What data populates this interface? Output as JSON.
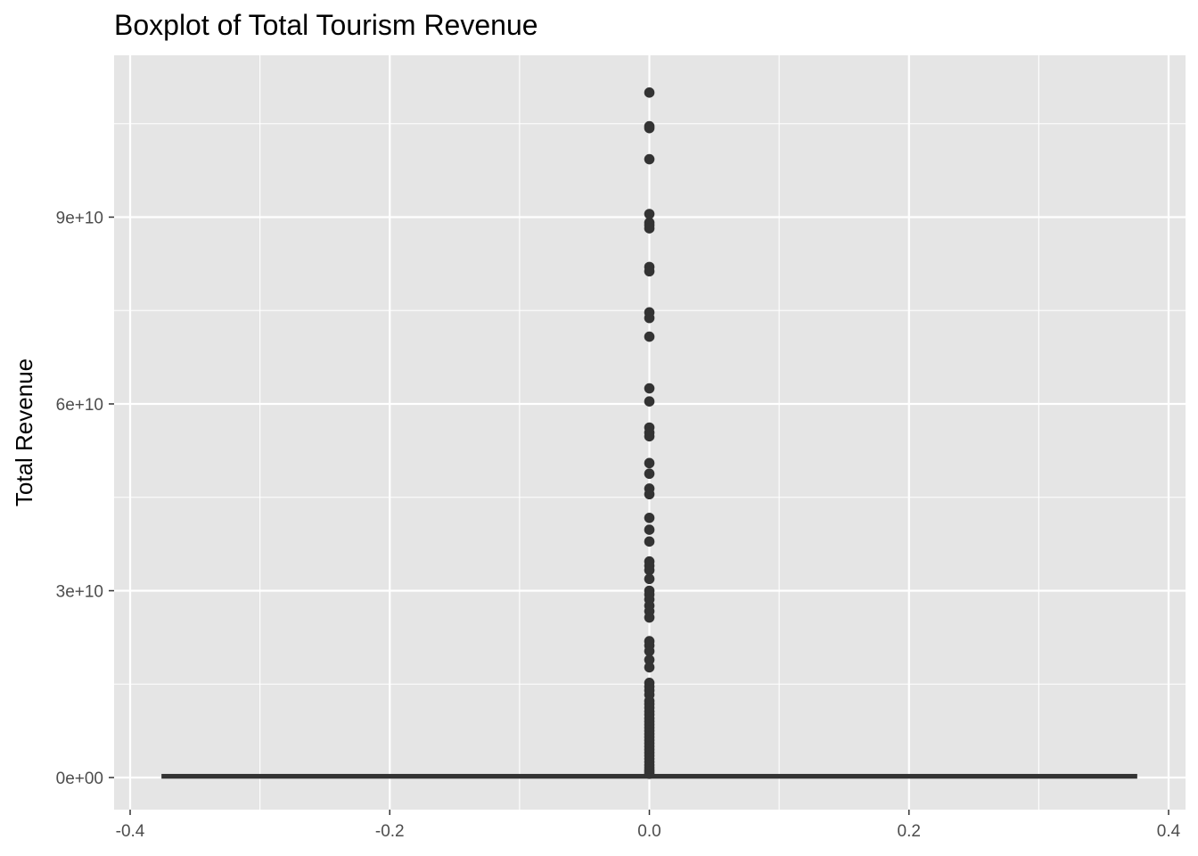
{
  "chart_data": {
    "type": "boxplot",
    "title": "Boxplot of Total Tourism Revenue",
    "xlabel": "",
    "ylabel": "Total Revenue",
    "xlim": [
      -0.4,
      0.4
    ],
    "ylim": [
      0,
      110000000000
    ],
    "x_ticks": [
      -0.4,
      -0.2,
      0.0,
      0.2,
      0.4
    ],
    "x_tick_labels": [
      "-0.4",
      "-0.2",
      "0.0",
      "0.2",
      "0.4"
    ],
    "y_ticks": [
      0,
      30000000000,
      60000000000,
      90000000000
    ],
    "y_tick_labels": [
      "0e+00",
      "3e+10",
      "6e+10",
      "9e+10"
    ],
    "grid": true,
    "background": "#e5e5e5",
    "mark_color": "#333333",
    "box": {
      "x_min": -0.375,
      "x_max": 0.375,
      "q1": 0,
      "median": 200000000,
      "q3": 400000000
    },
    "outliers_x": 0.0,
    "outliers": [
      110000000000,
      104600000000,
      104300000000,
      99300000000,
      90500000000,
      89100000000,
      88700000000,
      88200000000,
      82000000000,
      81300000000,
      74700000000,
      73800000000,
      70800000000,
      62500000000,
      60400000000,
      56200000000,
      55400000000,
      54800000000,
      50500000000,
      48800000000,
      46400000000,
      45500000000,
      41700000000,
      39800000000,
      37900000000,
      34700000000,
      34000000000,
      33300000000,
      31900000000,
      30000000000,
      29400000000,
      28600000000,
      27600000000,
      26700000000,
      25700000000,
      21900000000,
      21200000000,
      20300000000,
      18900000000,
      17700000000,
      15200000000,
      14600000000,
      14000000000,
      13300000000,
      12300000000,
      11800000000,
      11200000000,
      10600000000,
      10100000000,
      9500000000,
      9000000000,
      8500000000,
      8000000000,
      7500000000,
      7000000000,
      6500000000,
      6000000000,
      5500000000,
      5000000000,
      4500000000,
      4000000000,
      3500000000,
      3000000000,
      2500000000,
      2000000000,
      1600000000,
      1200000000,
      900000000,
      600000000
    ]
  }
}
